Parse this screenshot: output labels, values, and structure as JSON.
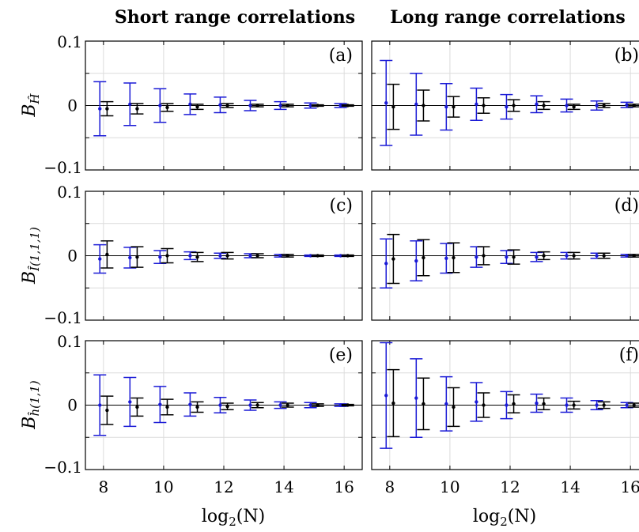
{
  "colors": {
    "series_blue": "#1a1ad6",
    "series_black": "#000000",
    "grid": "#dcdcdc"
  },
  "columns": [
    {
      "title": "Short range correlations"
    },
    {
      "title": "Long range correlations"
    }
  ],
  "x_tick_labels": [
    "8",
    "10",
    "12",
    "14",
    "16"
  ],
  "y_tick_labels": [
    "0.1",
    "0",
    "−0.1"
  ],
  "x_label": {
    "prefix": "log",
    "sub": "2",
    "suffix": "(N)"
  },
  "rows": [
    {
      "ylabel_main": "B",
      "ylabel_sub": "Ĥ"
    },
    {
      "ylabel_main": "B",
      "ylabel_sub": "Î(1,1,1)"
    },
    {
      "ylabel_main": "B",
      "ylabel_sub": "ĥ(1,1)"
    }
  ],
  "chart_data": [
    {
      "type": "scatter",
      "panel": "(a)",
      "row": 0,
      "col": 0,
      "xlim": [
        7.4,
        16.6
      ],
      "ylim": [
        -0.1,
        0.1
      ],
      "grid": true,
      "xticks": [
        8,
        10,
        12,
        14,
        16
      ],
      "yticks": [
        -0.1,
        0,
        0.1
      ],
      "x": [
        8,
        9,
        10,
        11,
        12,
        13,
        14,
        15,
        16
      ],
      "series": [
        {
          "color": "blue",
          "values": [
            -0.005,
            0.002,
            0.0,
            0.002,
            0.001,
            0.0,
            0.0,
            0.0,
            0.0
          ],
          "err": [
            0.042,
            0.033,
            0.026,
            0.016,
            0.012,
            0.008,
            0.006,
            0.004,
            0.003
          ]
        },
        {
          "color": "black",
          "values": [
            -0.005,
            -0.005,
            -0.003,
            -0.002,
            0.0,
            0.0,
            0.0,
            0.0,
            0.0
          ],
          "err": [
            0.011,
            0.008,
            0.006,
            0.004,
            0.003,
            0.002,
            0.002,
            0.001,
            0.001
          ]
        }
      ]
    },
    {
      "type": "scatter",
      "panel": "(b)",
      "row": 0,
      "col": 1,
      "xlim": [
        7.4,
        16.6
      ],
      "ylim": [
        -0.1,
        0.1
      ],
      "grid": true,
      "xticks": [
        8,
        10,
        12,
        14,
        16
      ],
      "yticks": [
        -0.1,
        0,
        0.1
      ],
      "x": [
        8,
        9,
        10,
        11,
        12,
        13,
        14,
        15,
        16
      ],
      "series": [
        {
          "color": "blue",
          "values": [
            0.004,
            0.002,
            -0.002,
            0.002,
            -0.002,
            0.002,
            0.0,
            0.0,
            0.001
          ],
          "err": [
            0.066,
            0.048,
            0.036,
            0.025,
            0.019,
            0.013,
            0.01,
            0.007,
            0.004
          ]
        },
        {
          "color": "black",
          "values": [
            -0.002,
            0.0,
            -0.002,
            0.0,
            0.0,
            0.0,
            -0.002,
            0.0,
            0.0
          ],
          "err": [
            0.035,
            0.024,
            0.016,
            0.012,
            0.009,
            0.006,
            0.004,
            0.003,
            0.002
          ]
        }
      ]
    },
    {
      "type": "scatter",
      "panel": "(c)",
      "row": 1,
      "col": 0,
      "xlim": [
        7.4,
        16.6
      ],
      "ylim": [
        -0.1,
        0.1
      ],
      "grid": true,
      "xticks": [
        8,
        10,
        12,
        14,
        16
      ],
      "yticks": [
        -0.1,
        0,
        0.1
      ],
      "x": [
        8,
        9,
        10,
        11,
        12,
        13,
        14,
        15,
        16
      ],
      "series": [
        {
          "color": "blue",
          "values": [
            -0.005,
            -0.003,
            -0.002,
            0.0,
            0.0,
            0.0,
            0.0,
            0.0,
            0.0
          ],
          "err": [
            0.022,
            0.016,
            0.01,
            0.006,
            0.004,
            0.003,
            0.002,
            0.001,
            0.001
          ]
        },
        {
          "color": "black",
          "values": [
            0.002,
            -0.002,
            0.0,
            -0.002,
            0.0,
            0.0,
            0.0,
            0.0,
            0.0
          ],
          "err": [
            0.021,
            0.016,
            0.011,
            0.007,
            0.005,
            0.003,
            0.002,
            0.001,
            0.001
          ]
        }
      ]
    },
    {
      "type": "scatter",
      "panel": "(d)",
      "row": 1,
      "col": 1,
      "xlim": [
        7.4,
        16.6
      ],
      "ylim": [
        -0.1,
        0.1
      ],
      "grid": true,
      "xticks": [
        8,
        10,
        12,
        14,
        16
      ],
      "yticks": [
        -0.1,
        0,
        0.1
      ],
      "x": [
        8,
        9,
        10,
        11,
        12,
        13,
        14,
        15,
        16
      ],
      "series": [
        {
          "color": "blue",
          "values": [
            -0.012,
            -0.008,
            -0.004,
            -0.002,
            -0.002,
            -0.002,
            0.0,
            0.0,
            0.0
          ],
          "err": [
            0.038,
            0.031,
            0.023,
            0.016,
            0.01,
            0.007,
            0.005,
            0.004,
            0.002
          ]
        },
        {
          "color": "black",
          "values": [
            -0.005,
            -0.003,
            -0.003,
            0.0,
            -0.002,
            0.0,
            0.0,
            0.0,
            0.0
          ],
          "err": [
            0.038,
            0.028,
            0.023,
            0.014,
            0.011,
            0.006,
            0.005,
            0.004,
            0.002
          ]
        }
      ]
    },
    {
      "type": "scatter",
      "panel": "(e)",
      "row": 2,
      "col": 0,
      "xlim": [
        7.4,
        16.6
      ],
      "ylim": [
        -0.1,
        0.1
      ],
      "grid": true,
      "xticks": [
        8,
        10,
        12,
        14,
        16
      ],
      "yticks": [
        -0.1,
        0,
        0.1
      ],
      "x": [
        8,
        9,
        10,
        11,
        12,
        13,
        14,
        15,
        16
      ],
      "series": [
        {
          "color": "blue",
          "values": [
            0.0,
            0.005,
            0.001,
            0.001,
            0.0,
            0.0,
            0.0,
            0.0,
            0.0
          ],
          "err": [
            0.047,
            0.038,
            0.028,
            0.018,
            0.012,
            0.008,
            0.005,
            0.004,
            0.002
          ]
        },
        {
          "color": "black",
          "values": [
            -0.008,
            -0.003,
            -0.003,
            -0.003,
            -0.002,
            0.0,
            0.0,
            0.0,
            0.0
          ],
          "err": [
            0.022,
            0.014,
            0.012,
            0.008,
            0.005,
            0.004,
            0.003,
            0.002,
            0.001
          ]
        }
      ]
    },
    {
      "type": "scatter",
      "panel": "(f)",
      "row": 2,
      "col": 1,
      "xlim": [
        7.4,
        16.6
      ],
      "ylim": [
        -0.1,
        0.1
      ],
      "grid": true,
      "xticks": [
        8,
        10,
        12,
        14,
        16
      ],
      "yticks": [
        -0.1,
        0,
        0.1
      ],
      "x": [
        8,
        9,
        10,
        11,
        12,
        13,
        14,
        15,
        16
      ],
      "series": [
        {
          "color": "blue",
          "values": [
            0.015,
            0.011,
            0.002,
            0.005,
            0.0,
            0.003,
            0.0,
            0.0,
            0.0
          ],
          "err": [
            0.082,
            0.061,
            0.042,
            0.03,
            0.021,
            0.014,
            0.011,
            0.007,
            0.004
          ]
        },
        {
          "color": "black",
          "values": [
            0.003,
            0.002,
            -0.003,
            0.0,
            0.002,
            0.002,
            0.0,
            0.0,
            0.0
          ],
          "err": [
            0.052,
            0.04,
            0.03,
            0.019,
            0.014,
            0.009,
            0.006,
            0.005,
            0.003
          ]
        }
      ]
    }
  ]
}
